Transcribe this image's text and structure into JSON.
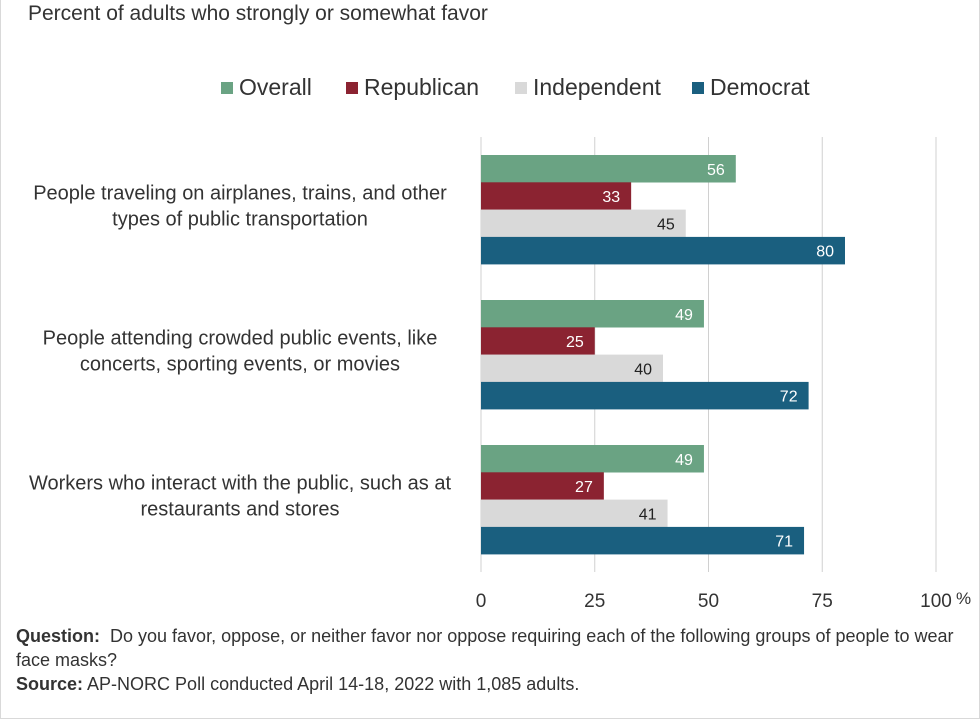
{
  "chart_data": {
    "type": "bar",
    "orientation": "horizontal",
    "title": "",
    "subtitle": "Percent of adults who strongly or somewhat favor",
    "categories": [
      [
        "People traveling on airplanes, trains, and other",
        "types of public transportation"
      ],
      [
        "People attending crowded public events, like",
        "concerts, sporting events, or movies"
      ],
      [
        "Workers who interact with the public, such as at",
        "restaurants and stores"
      ]
    ],
    "series": [
      {
        "name": "Overall",
        "color": "#6aa383",
        "label_color": "#ffffff",
        "values": [
          56,
          49,
          49
        ]
      },
      {
        "name": "Republican",
        "color": "#8b2331",
        "label_color": "#ffffff",
        "values": [
          33,
          25,
          27
        ]
      },
      {
        "name": "Independent",
        "color": "#d9d9d9",
        "label_color": "#222222",
        "values": [
          45,
          40,
          41
        ]
      },
      {
        "name": "Democrat",
        "color": "#1a5f7f",
        "label_color": "#ffffff",
        "values": [
          80,
          72,
          71
        ]
      }
    ],
    "xlim": [
      0,
      100
    ],
    "xticks": [
      "0",
      "25",
      "50",
      "75",
      "100"
    ],
    "xtick_values": [
      0,
      25,
      50,
      75,
      100
    ],
    "x_unit": "%",
    "grid": true,
    "legend_position": "top-center",
    "xlabel": "",
    "ylabel": ""
  },
  "footer": {
    "question_label": "Question:",
    "question_text": "Do you favor, oppose, or neither favor nor oppose requiring each of the following groups of people to wear face masks?",
    "source_label": "Source:",
    "source_text": "AP-NORC Poll conducted April 14-18, 2022 with 1,085 adults."
  }
}
